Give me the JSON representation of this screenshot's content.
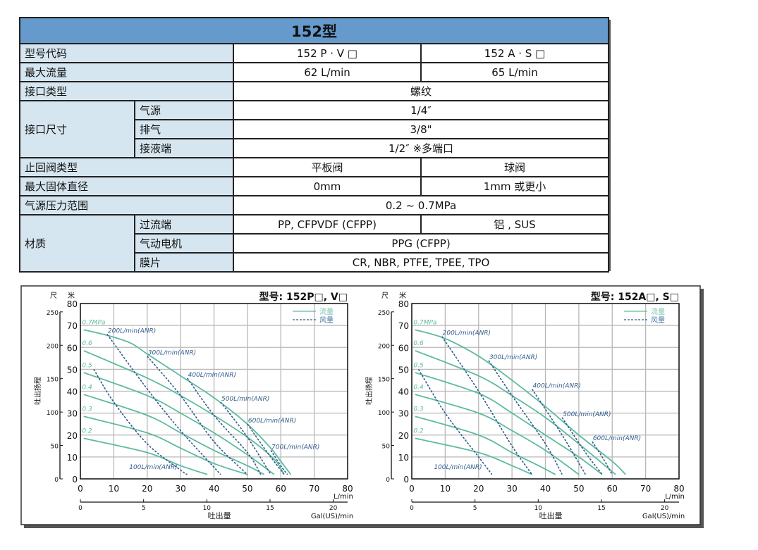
{
  "spec_table": {
    "title": "152型",
    "rows": [
      {
        "label": "型号代码",
        "values": [
          "152 P · V □",
          "152 A · S □"
        ]
      },
      {
        "label": "最大流量",
        "values": [
          "62 L/min",
          "65 L/min"
        ]
      },
      {
        "label": "接口类型",
        "values": [
          "螺纹"
        ]
      },
      {
        "label": "接口尺寸",
        "sub": [
          {
            "label": "气源",
            "values": [
              "1/4″"
            ]
          },
          {
            "label": "排气",
            "values": [
              "3/8\""
            ]
          },
          {
            "label": "接液端",
            "values": [
              "1/2″ ※多端口"
            ]
          }
        ]
      },
      {
        "label": "止回阀类型",
        "values": [
          "平板阀",
          "球阀"
        ]
      },
      {
        "label": "最大固体直径",
        "values": [
          "0mm",
          "1mm 或更小"
        ]
      },
      {
        "label": "气源压力范围",
        "values": [
          "0.2 ~ 0.7MPa"
        ]
      },
      {
        "label": "材质",
        "sub": [
          {
            "label": "过流端",
            "values": [
              "PP, CFPVDF (CFPP)",
              "铝 , SUS"
            ]
          },
          {
            "label": "气动电机",
            "values": [
              "PPG (CFPP)"
            ]
          },
          {
            "label": "膜片",
            "values": [
              "CR, NBR, PTFE, TPEE, TPO"
            ]
          }
        ]
      }
    ],
    "colors": {
      "header": "#6699cc",
      "label_bg": "#d6e6f0"
    }
  },
  "chart_data": [
    {
      "type": "line",
      "title": "型号: 152P□, V□",
      "xlabel": "吐出量",
      "x_unit": "L/min",
      "x2_unit": "Gal(US)/min",
      "ylabel": "吐出扬程",
      "y_unit": "米",
      "y2_unit": "尺",
      "xlim": [
        0,
        80
      ],
      "ylim": [
        0,
        80
      ],
      "x_ticks": [
        0,
        10,
        20,
        30,
        40,
        50,
        60,
        70,
        80
      ],
      "y_ticks": [
        0,
        10,
        20,
        30,
        40,
        50,
        60,
        70,
        80
      ],
      "x2_ticks": [
        0,
        5,
        10,
        15,
        20
      ],
      "y2_ticks": [
        0,
        50,
        100,
        150,
        200,
        250
      ],
      "grid": true,
      "legend": {
        "position": "top-right",
        "solid": "流量",
        "dashed": "风量"
      },
      "colors": {
        "flow": "#5dbb9f",
        "air": "#2f5d8c"
      },
      "pressure_series": [
        {
          "name": "0.7MPa",
          "x": [
            1,
            8,
            15,
            20,
            30,
            40,
            50,
            57,
            60,
            63
          ],
          "y": [
            68,
            65.5,
            62,
            57,
            47,
            37,
            25,
            14,
            8,
            2
          ]
        },
        {
          "name": "0.6",
          "x": [
            1,
            20,
            30,
            40,
            50,
            58,
            61
          ],
          "y": [
            58.5,
            46,
            38,
            29,
            19,
            9,
            2
          ]
        },
        {
          "name": "0.5",
          "x": [
            1,
            20,
            30,
            40,
            50,
            58
          ],
          "y": [
            48.5,
            38,
            30,
            21,
            11,
            2
          ]
        },
        {
          "name": "0.4",
          "x": [
            1,
            20,
            30,
            40,
            50,
            55
          ],
          "y": [
            38.5,
            29,
            21,
            13,
            6,
            2
          ]
        },
        {
          "name": "0.3",
          "x": [
            1,
            20,
            30,
            40,
            50
          ],
          "y": [
            28.5,
            21,
            14,
            7,
            2
          ]
        },
        {
          "name": "0.2",
          "x": [
            1,
            20,
            30,
            38
          ],
          "y": [
            18.5,
            12,
            6,
            2
          ]
        }
      ],
      "air_series": [
        {
          "name": "100L/min(ANR)",
          "x": [
            4,
            10,
            20,
            30,
            32
          ],
          "y": [
            50,
            35,
            16,
            4,
            2
          ]
        },
        {
          "name": "200L/min(ANR)",
          "x": [
            8,
            20,
            30,
            42
          ],
          "y": [
            66,
            41,
            22,
            2
          ]
        },
        {
          "name": "300L/min(ANR)",
          "x": [
            20,
            30,
            40,
            50
          ],
          "y": [
            56,
            38,
            17,
            2
          ]
        },
        {
          "name": "400L/min(ANR)",
          "x": [
            32,
            40,
            50,
            54
          ],
          "y": [
            46,
            29,
            12,
            2
          ]
        },
        {
          "name": "500L/min(ANR)",
          "x": [
            42,
            50,
            57
          ],
          "y": [
            35,
            19,
            2
          ]
        },
        {
          "name": "600L/min(ANR)",
          "x": [
            50,
            56,
            61
          ],
          "y": [
            25,
            12,
            2
          ]
        },
        {
          "name": "700L/min(ANR)",
          "x": [
            57,
            60,
            62
          ],
          "y": [
            13,
            6,
            2
          ]
        }
      ]
    },
    {
      "type": "line",
      "title": "型号: 152A□, S□",
      "xlabel": "吐出量",
      "x_unit": "L/min",
      "x2_unit": "Gal(US)/min",
      "ylabel": "吐出扬程",
      "y_unit": "米",
      "y2_unit": "尺",
      "xlim": [
        0,
        80
      ],
      "ylim": [
        0,
        80
      ],
      "x_ticks": [
        0,
        10,
        20,
        30,
        40,
        50,
        60,
        70,
        80
      ],
      "y_ticks": [
        0,
        10,
        20,
        30,
        40,
        50,
        60,
        70,
        80
      ],
      "x2_ticks": [
        0,
        5,
        10,
        15,
        20
      ],
      "y2_ticks": [
        0,
        50,
        100,
        150,
        200,
        250
      ],
      "grid": true,
      "legend": {
        "position": "top-right",
        "solid": "流量",
        "dashed": "风量"
      },
      "colors": {
        "flow": "#5dbb9f",
        "air": "#2f5d8c"
      },
      "pressure_series": [
        {
          "name": "0.7MPa",
          "x": [
            1,
            10,
            20,
            30,
            40,
            50,
            60,
            64
          ],
          "y": [
            68,
            64,
            56,
            45,
            33,
            20,
            8,
            2
          ]
        },
        {
          "name": "0.6",
          "x": [
            1,
            20,
            30,
            40,
            50,
            61
          ],
          "y": [
            58.5,
            47,
            38,
            28,
            16,
            2
          ]
        },
        {
          "name": "0.5",
          "x": [
            1,
            20,
            30,
            40,
            50,
            57
          ],
          "y": [
            48.5,
            39,
            30,
            20,
            10,
            2
          ]
        },
        {
          "name": "0.4",
          "x": [
            1,
            20,
            30,
            40,
            50
          ],
          "y": [
            38.5,
            30,
            22,
            13,
            2
          ]
        },
        {
          "name": "0.3",
          "x": [
            1,
            20,
            30,
            38,
            43
          ],
          "y": [
            28.5,
            20,
            12,
            6,
            2
          ]
        },
        {
          "name": "0.2",
          "x": [
            1,
            20,
            30,
            36
          ],
          "y": [
            18.5,
            12,
            6,
            2
          ]
        }
      ],
      "air_series": [
        {
          "name": "100L/min(ANR)",
          "x": [
            2,
            10,
            20,
            24
          ],
          "y": [
            50,
            30,
            10,
            2
          ]
        },
        {
          "name": "200L/min(ANR)",
          "x": [
            9,
            20,
            30,
            36
          ],
          "y": [
            65,
            40,
            15,
            2
          ]
        },
        {
          "name": "300L/min(ANR)",
          "x": [
            23,
            30,
            40,
            45
          ],
          "y": [
            54,
            38,
            16,
            2
          ]
        },
        {
          "name": "400L/min(ANR)",
          "x": [
            36,
            45,
            52
          ],
          "y": [
            41,
            20,
            2
          ]
        },
        {
          "name": "500L/min(ANR)",
          "x": [
            45,
            52,
            57
          ],
          "y": [
            28,
            12,
            2
          ]
        },
        {
          "name": "600L/min(ANR)",
          "x": [
            54,
            57,
            60
          ],
          "y": [
            17,
            10,
            2
          ]
        }
      ]
    }
  ]
}
